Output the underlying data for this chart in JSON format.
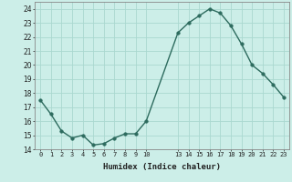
{
  "x": [
    0,
    1,
    2,
    3,
    4,
    5,
    6,
    7,
    8,
    9,
    10,
    13,
    14,
    15,
    16,
    17,
    18,
    19,
    20,
    21,
    22,
    23
  ],
  "y": [
    17.5,
    16.5,
    15.3,
    14.8,
    15.0,
    14.3,
    14.4,
    14.8,
    15.1,
    15.1,
    16.0,
    22.3,
    23.0,
    23.5,
    24.0,
    23.7,
    22.8,
    21.5,
    20.0,
    19.4,
    18.6,
    17.7
  ],
  "line_color": "#2d6b5e",
  "marker_color": "#2d6b5e",
  "bg_color": "#cceee8",
  "grid_color": "#aad8d0",
  "xlabel": "Humidex (Indice chaleur)",
  "xlim": [
    -0.5,
    23.5
  ],
  "ylim": [
    14,
    24.5
  ],
  "yticks": [
    14,
    15,
    16,
    17,
    18,
    19,
    20,
    21,
    22,
    23,
    24
  ]
}
